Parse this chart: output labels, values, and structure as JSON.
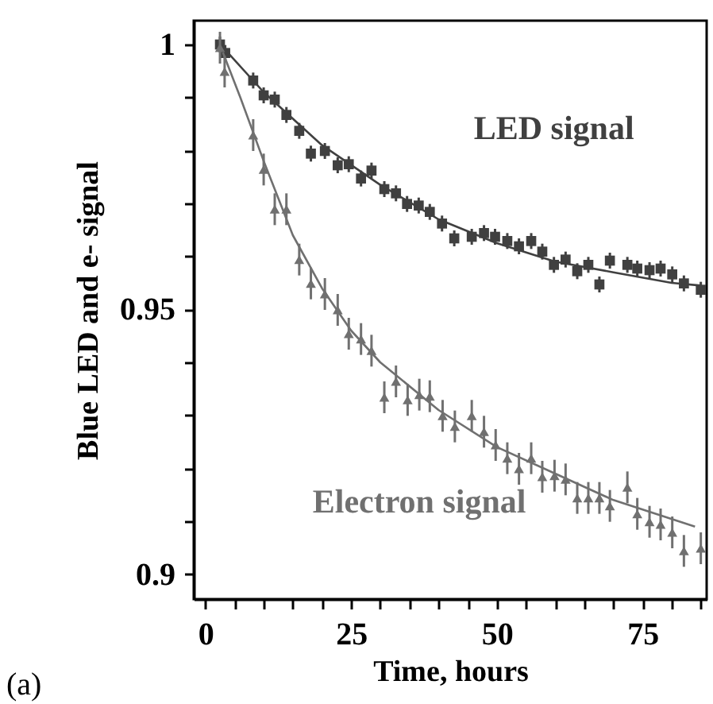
{
  "chart_data": {
    "type": "scatter",
    "xlabel": "Time, hours",
    "ylabel": "Blue LED and e- signal",
    "annotations": [
      "(a)"
    ],
    "xlim": [
      -2,
      86
    ],
    "ylim": [
      0.8953,
      1.0045
    ],
    "xticks": [
      0,
      {
        "value": 5,
        "label": null
      },
      {
        "value": 10,
        "label": null
      },
      {
        "value": 15,
        "label": null
      },
      {
        "value": 20,
        "label": null
      },
      25,
      {
        "value": 30,
        "label": null
      },
      {
        "value": 35,
        "label": null
      },
      {
        "value": 40,
        "label": null
      },
      {
        "value": 45,
        "label": null
      },
      50,
      {
        "value": 55,
        "label": null
      },
      {
        "value": 60,
        "label": null
      },
      {
        "value": 65,
        "label": null
      },
      {
        "value": 70,
        "label": null
      },
      75,
      {
        "value": 80,
        "label": null
      },
      {
        "value": 85,
        "label": null
      }
    ],
    "yticks": [
      {
        "value": 0.9,
        "label": "0.9"
      },
      {
        "value": 0.91,
        "label": null
      },
      {
        "value": 0.92,
        "label": null
      },
      {
        "value": 0.93,
        "label": null
      },
      {
        "value": 0.94,
        "label": null
      },
      0.95,
      {
        "value": 0.96,
        "label": null
      },
      {
        "value": 0.97,
        "label": null
      },
      {
        "value": 0.98,
        "label": null
      },
      {
        "value": 0.99,
        "label": null
      },
      1
    ],
    "grid": false,
    "series": [
      {
        "name": "LED signal",
        "marker": "square",
        "color": "#404040",
        "x": [
          2.5,
          3.4,
          8.2,
          10.0,
          11.9,
          13.9,
          16.1,
          18.1,
          20.5,
          22.7,
          24.6,
          26.7,
          28.5,
          30.7,
          32.7,
          34.6,
          36.6,
          38.5,
          40.6,
          42.7,
          45.7,
          47.8,
          49.7,
          51.8,
          53.8,
          55.9,
          57.8,
          59.8,
          61.8,
          63.8,
          65.7,
          67.6,
          69.4,
          72.4,
          74.1,
          76.2,
          78.1,
          80.1,
          82.1,
          85.0
        ],
        "values": [
          1.0,
          0.9984,
          0.9932,
          0.9904,
          0.9896,
          0.9867,
          0.9837,
          0.9794,
          0.9799,
          0.9772,
          0.9774,
          0.9747,
          0.9762,
          0.9727,
          0.9719,
          0.9699,
          0.9696,
          0.9684,
          0.9662,
          0.9634,
          0.9637,
          0.9644,
          0.9637,
          0.9629,
          0.9619,
          0.9629,
          0.9609,
          0.9584,
          0.9594,
          0.9572,
          0.9584,
          0.9547,
          0.9592,
          0.9584,
          0.9577,
          0.9574,
          0.9577,
          0.9566,
          0.9549,
          0.9537
        ],
        "errors": [
          0.0015,
          0.0015,
          0.0015,
          0.0015,
          0.0015,
          0.0015,
          0.0015,
          0.0015,
          0.0015,
          0.0015,
          0.0015,
          0.0015,
          0.0015,
          0.0015,
          0.0015,
          0.0015,
          0.0015,
          0.0015,
          0.0015,
          0.0015,
          0.0015,
          0.0015,
          0.0015,
          0.0015,
          0.0015,
          0.0015,
          0.0015,
          0.0015,
          0.0015,
          0.0015,
          0.0015,
          0.0015,
          0.0015,
          0.0015,
          0.0015,
          0.0015,
          0.0015,
          0.0015,
          0.0015,
          0.0015
        ]
      },
      {
        "type": "line",
        "color": "#404040",
        "x": [
          3,
          10,
          20,
          30,
          40,
          50,
          60,
          70,
          80,
          85
        ],
        "values": [
          0.9995,
          0.991,
          0.981,
          0.9735,
          0.967,
          0.9625,
          0.959,
          0.957,
          0.955,
          0.9545
        ]
      },
      {
        "name": "Electron signal",
        "marker": "triangle",
        "color": "#707070",
        "x": [
          2.5,
          3.3,
          8.2,
          10.0,
          11.9,
          13.9,
          16.1,
          18.1,
          20.5,
          22.7,
          24.6,
          26.7,
          28.5,
          30.7,
          32.7,
          34.7,
          36.7,
          38.5,
          40.7,
          42.8,
          45.7,
          47.8,
          49.8,
          51.8,
          53.8,
          55.9,
          57.8,
          59.9,
          61.8,
          63.8,
          65.7,
          67.6,
          69.4,
          72.4,
          74.1,
          76.2,
          78.1,
          80.1,
          82.1,
          85.0
        ],
        "values": [
          0.9994,
          0.9949,
          0.9829,
          0.9764,
          0.9689,
          0.9689,
          0.9594,
          0.9549,
          0.9529,
          0.9499,
          0.9454,
          0.9444,
          0.9422,
          0.9334,
          0.9364,
          0.9329,
          0.9339,
          0.9336,
          0.9299,
          0.9279,
          0.9299,
          0.9269,
          0.9244,
          0.9219,
          0.9199,
          0.9219,
          0.9184,
          0.9186,
          0.9179,
          0.9144,
          0.9144,
          0.9144,
          0.9129,
          0.9164,
          0.9114,
          0.9099,
          0.9094,
          0.9079,
          0.9044,
          0.9049
        ],
        "errors": [
          0.003,
          0.003,
          0.003,
          0.003,
          0.003,
          0.003,
          0.003,
          0.003,
          0.003,
          0.003,
          0.003,
          0.003,
          0.003,
          0.003,
          0.003,
          0.003,
          0.003,
          0.003,
          0.003,
          0.003,
          0.003,
          0.003,
          0.003,
          0.003,
          0.003,
          0.003,
          0.003,
          0.003,
          0.003,
          0.003,
          0.003,
          0.003,
          0.003,
          0.003,
          0.003,
          0.003,
          0.003,
          0.003,
          0.003,
          0.003
        ]
      },
      {
        "type": "line",
        "color": "#707070",
        "x": [
          3,
          6,
          10,
          15,
          20,
          25,
          30,
          40,
          50,
          60,
          70,
          84
        ],
        "values": [
          0.9985,
          0.99,
          0.978,
          0.964,
          0.954,
          0.946,
          0.94,
          0.931,
          0.924,
          0.919,
          0.914,
          0.909
        ]
      }
    ]
  }
}
